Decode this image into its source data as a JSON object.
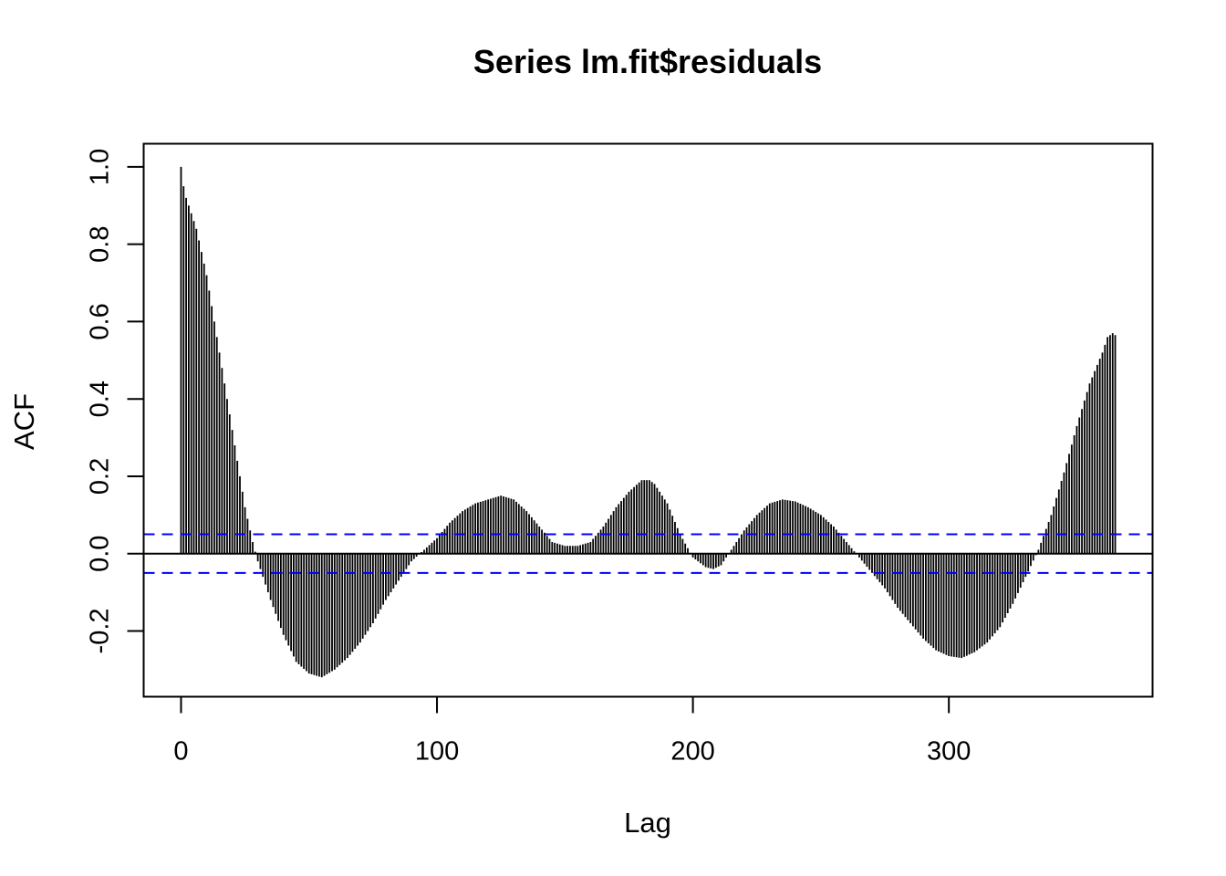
{
  "chart_data": {
    "type": "bar",
    "subtype": "acf",
    "title": "Series  lm.fit$residuals",
    "xlabel": "Lag",
    "ylabel": "ACF",
    "xlim": [
      -14.6,
      379.6
    ],
    "ylim": [
      -0.37,
      1.06
    ],
    "x_ticks": [
      0,
      100,
      200,
      300
    ],
    "x_tick_labels": [
      "0",
      "100",
      "200",
      "300"
    ],
    "y_ticks": [
      -0.2,
      0.0,
      0.2,
      0.4,
      0.6,
      0.8,
      1.0
    ],
    "y_tick_labels": [
      "-0.2",
      "0.0",
      "0.2",
      "0.4",
      "0.6",
      "0.8",
      "1.0"
    ],
    "max_lag": 365,
    "confidence_limit": 0.05,
    "confidence_color": "#0000ff",
    "bar_color": "#000000",
    "zero_line": true,
    "acf_profile": {
      "description": "ACF value at selected lags; values between are interpolated",
      "lags": [
        0,
        1,
        2,
        4,
        6,
        8,
        10,
        12,
        14,
        16,
        18,
        20,
        22,
        25,
        28,
        30,
        35,
        40,
        45,
        50,
        55,
        60,
        65,
        70,
        75,
        80,
        85,
        90,
        95,
        100,
        105,
        110,
        115,
        120,
        125,
        130,
        135,
        140,
        145,
        150,
        155,
        160,
        165,
        170,
        175,
        180,
        183,
        185,
        190,
        195,
        200,
        205,
        208,
        211,
        215,
        220,
        225,
        230,
        235,
        240,
        245,
        250,
        255,
        260,
        265,
        270,
        275,
        280,
        285,
        290,
        295,
        300,
        305,
        310,
        315,
        320,
        325,
        330,
        335,
        340,
        345,
        350,
        355,
        360,
        362,
        364,
        365
      ],
      "values": [
        1.0,
        0.95,
        0.92,
        0.88,
        0.84,
        0.78,
        0.72,
        0.64,
        0.56,
        0.48,
        0.4,
        0.32,
        0.24,
        0.12,
        0.03,
        -0.02,
        -0.12,
        -0.21,
        -0.28,
        -0.31,
        -0.32,
        -0.3,
        -0.27,
        -0.23,
        -0.18,
        -0.12,
        -0.07,
        -0.02,
        0.01,
        0.04,
        0.08,
        0.11,
        0.13,
        0.14,
        0.15,
        0.14,
        0.11,
        0.07,
        0.03,
        0.02,
        0.02,
        0.03,
        0.07,
        0.12,
        0.16,
        0.19,
        0.19,
        0.18,
        0.13,
        0.05,
        -0.01,
        -0.035,
        -0.04,
        -0.03,
        0.01,
        0.06,
        0.1,
        0.13,
        0.14,
        0.135,
        0.12,
        0.1,
        0.07,
        0.03,
        -0.01,
        -0.05,
        -0.09,
        -0.14,
        -0.18,
        -0.22,
        -0.25,
        -0.265,
        -0.27,
        -0.255,
        -0.23,
        -0.19,
        -0.13,
        -0.06,
        0.01,
        0.1,
        0.21,
        0.33,
        0.44,
        0.52,
        0.56,
        0.57,
        0.565
      ]
    }
  }
}
